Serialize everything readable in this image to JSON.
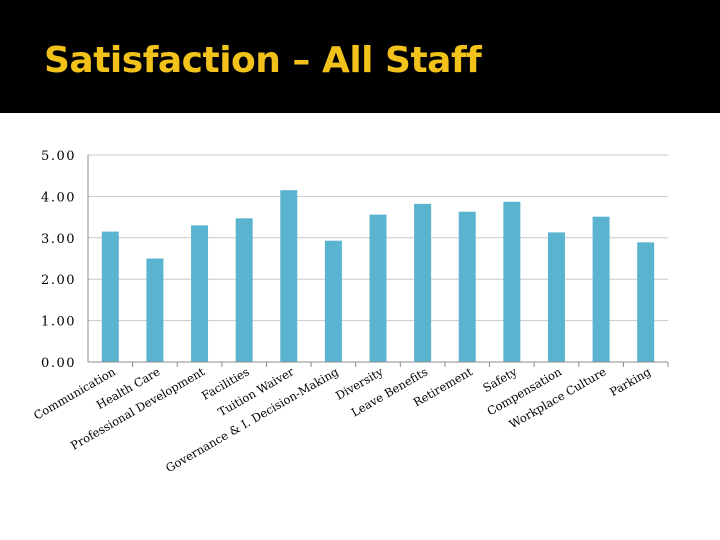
{
  "slide": {
    "title": "Satisfaction – All Staff",
    "title_color": "#f2c21a",
    "header_bg": "#000000"
  },
  "chart_data": {
    "type": "bar",
    "title": "",
    "xlabel": "",
    "ylabel": "",
    "ylim": [
      0,
      5
    ],
    "yticks": [
      "0.00",
      "1.00",
      "2.00",
      "3.00",
      "4.00",
      "5.00"
    ],
    "grid": true,
    "legend": "none",
    "bar_color": "#5bb4cf",
    "categories": [
      "Communication",
      "Health Care",
      "Professional Development",
      "Facilities",
      "Tuition Waiver",
      "Governance & I. Decision-Making",
      "Diversity",
      "Leave Benefits",
      "Retirement",
      "Safety",
      "Compensation",
      "Workplace Culture",
      "Parking"
    ],
    "values": [
      3.15,
      2.5,
      3.3,
      3.47,
      4.15,
      2.93,
      3.56,
      3.82,
      3.63,
      3.87,
      3.13,
      3.51,
      2.89
    ]
  }
}
